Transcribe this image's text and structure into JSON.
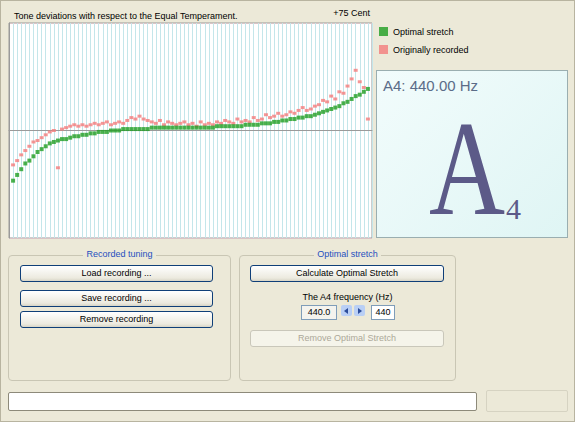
{
  "chart_data": {
    "type": "scatter",
    "title": "Tone deviations with respect to the Equal Temperament.",
    "annotations": [
      "+75 Cent"
    ],
    "x": [
      1,
      2,
      3,
      4,
      5,
      6,
      7,
      8,
      9,
      10,
      11,
      12,
      13,
      14,
      15,
      16,
      17,
      18,
      19,
      20,
      21,
      22,
      23,
      24,
      25,
      26,
      27,
      28,
      29,
      30,
      31,
      32,
      33,
      34,
      35,
      36,
      37,
      38,
      39,
      40,
      41,
      42,
      43,
      44,
      45,
      46,
      47,
      48,
      49,
      50,
      51,
      52,
      53,
      54,
      55,
      56,
      57,
      58,
      59,
      60,
      61,
      62,
      63,
      64,
      65,
      66,
      67,
      68,
      69,
      70,
      71,
      72,
      73,
      74,
      75,
      76,
      77,
      78,
      79,
      80,
      81,
      82,
      83,
      84,
      85,
      86,
      87,
      88
    ],
    "series": [
      {
        "name": "Optimal stretch",
        "color": "#1f9e22",
        "marker": "square",
        "values": [
          -35,
          -31,
          -27,
          -23,
          -21,
          -18,
          -15,
          -13,
          -11,
          -9,
          -8,
          -7,
          -6,
          -6,
          -5,
          -4,
          -4,
          -3,
          -3,
          -2,
          -2,
          -1,
          -1,
          -1,
          0,
          0,
          0,
          1,
          1,
          1,
          1,
          1,
          1,
          1,
          2,
          2,
          2,
          2,
          2,
          2,
          2,
          2,
          2,
          2,
          2,
          2,
          2,
          2,
          2,
          2,
          3,
          3,
          3,
          3,
          3,
          3,
          3,
          4,
          4,
          4,
          4,
          5,
          5,
          5,
          6,
          6,
          7,
          7,
          8,
          8,
          9,
          9,
          10,
          10,
          11,
          12,
          13,
          14,
          15,
          16,
          17,
          19,
          20,
          22,
          24,
          25,
          27,
          29
        ]
      },
      {
        "name": "Originally recorded",
        "color": "#f47c7c",
        "marker": "square",
        "values": [
          -24,
          -21,
          -17,
          -14,
          -11,
          -8,
          -7,
          -5,
          -3,
          -1,
          0,
          -26,
          1,
          2,
          3,
          4,
          3,
          4,
          3,
          4,
          5,
          4,
          5,
          6,
          4,
          5,
          6,
          5,
          7,
          9,
          8,
          10,
          8,
          7,
          6,
          5,
          7,
          4,
          6,
          5,
          4,
          5,
          6,
          4,
          5,
          3,
          6,
          4,
          5,
          4,
          6,
          5,
          7,
          6,
          5,
          8,
          6,
          7,
          6,
          9,
          7,
          8,
          11,
          9,
          10,
          12,
          10,
          11,
          13,
          12,
          14,
          16,
          14,
          15,
          17,
          18,
          21,
          20,
          24,
          22,
          27,
          26,
          31,
          36,
          42,
          34,
          30,
          8
        ]
      }
    ],
    "xlim": [
      0,
      89
    ],
    "xticks": [
      0,
      1,
      2,
      3,
      4,
      5,
      6,
      7,
      8,
      9,
      10,
      11,
      12,
      13,
      14,
      15,
      16,
      17,
      18,
      19,
      20,
      21,
      22,
      23,
      24,
      25,
      26,
      27,
      28,
      29,
      30,
      31,
      32,
      33,
      34,
      35,
      36,
      37,
      38,
      39,
      40,
      41,
      42,
      43,
      44,
      45,
      46,
      47,
      48,
      49,
      50,
      51,
      52,
      53,
      54,
      55,
      56,
      57,
      58,
      59,
      60,
      61,
      62,
      63,
      64,
      65,
      66,
      67,
      68,
      69,
      70,
      71,
      72,
      73,
      74,
      75,
      76,
      77,
      78,
      79,
      80,
      81,
      82,
      83,
      84,
      85,
      86,
      87,
      88,
      89
    ],
    "ylim": [
      -75,
      75
    ],
    "yticks": [
      -75,
      0,
      75
    ],
    "grid": true,
    "tick_labels": false,
    "legend": "right"
  },
  "display": {
    "note": "A4: 440.00 Hz",
    "letter": "A",
    "octave": "4"
  },
  "recorded_tuning": {
    "title": "Recorded tuning",
    "buttons": [
      "Load recording ...",
      "Save recording ...",
      "Remove recording"
    ]
  },
  "optimal_stretch": {
    "title": "Optimal stretch",
    "button": "Calculate Optimal Stretch",
    "field_label": "The A4 frequency (Hz)",
    "spin_value": "440.0",
    "field_value": "440",
    "disabled_button": "Remove Optimal Stretch"
  }
}
